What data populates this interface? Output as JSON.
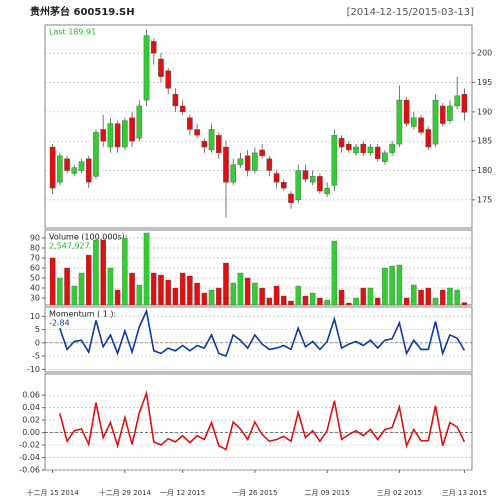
{
  "chart_data": [
    {
      "type": "candlestick",
      "title": "贵州茅台 600519.SH",
      "subtitle": "[2014-12-15/2015-03-13]",
      "annotation": "Last 189.91",
      "categories": [
        "十二月 15 2014",
        null,
        null,
        null,
        null,
        null,
        null,
        null,
        null,
        null,
        "十二月 29 2014",
        null,
        null,
        null,
        null,
        null,
        null,
        null,
        "一月 12 2015",
        null,
        null,
        null,
        null,
        null,
        null,
        null,
        null,
        null,
        "一月 26 2015",
        null,
        null,
        null,
        null,
        null,
        null,
        null,
        null,
        null,
        "二月 09 2015",
        null,
        null,
        null,
        null,
        null,
        null,
        null,
        null,
        null,
        "三月 02 2015",
        null,
        null,
        null,
        null,
        null,
        null,
        null,
        null,
        "三月 13 2015"
      ],
      "open": [
        184,
        178,
        182,
        179.5,
        180,
        182,
        179,
        187,
        184,
        188,
        184,
        189,
        185.5,
        192,
        202,
        199,
        197,
        193,
        191,
        189,
        187,
        185,
        183.5,
        186,
        184,
        178,
        181,
        182.5,
        180,
        183.5,
        182,
        179.5,
        178,
        176,
        175,
        180,
        178,
        179,
        176,
        177.5,
        185.5,
        184.5,
        183,
        184.5,
        183,
        184,
        181.5,
        183,
        184.5,
        192,
        187.5,
        189,
        187,
        184.5,
        191,
        188.5,
        191,
        193
      ],
      "high": [
        184.5,
        183,
        182.5,
        181,
        182,
        182.5,
        187,
        189.5,
        189,
        188.5,
        189,
        190,
        192,
        204,
        202.5,
        200,
        197.5,
        194,
        192,
        189.5,
        188,
        185.5,
        188,
        186.5,
        185,
        182,
        183,
        183.5,
        184,
        184.5,
        182.5,
        180,
        178.5,
        176.5,
        181,
        181,
        180,
        179.5,
        178,
        187,
        186,
        185,
        184.5,
        185,
        184.5,
        184.5,
        183.5,
        185,
        194.5,
        192.5,
        190,
        189.5,
        187.5,
        193,
        191.5,
        192,
        196,
        194
      ],
      "low": [
        176,
        177.5,
        179.5,
        179,
        179.5,
        177,
        178.5,
        184,
        183,
        183,
        183.5,
        184,
        185,
        191,
        198,
        195,
        193,
        190,
        189.5,
        186,
        185.5,
        183,
        183,
        182,
        172,
        177.5,
        180.5,
        179,
        179.5,
        182,
        179,
        177,
        176.5,
        173.5,
        174.5,
        178,
        177.5,
        176,
        175.5,
        176.5,
        183,
        183,
        182.5,
        182.5,
        182.5,
        181.5,
        181,
        182.5,
        184,
        187.5,
        187,
        186,
        183.5,
        184,
        187.5,
        188,
        190.5,
        188.5
      ],
      "close": [
        177,
        182.5,
        180,
        180.5,
        181.5,
        178,
        186.5,
        185,
        188,
        184,
        188.5,
        185,
        191,
        203,
        200,
        196,
        194,
        191,
        190,
        187,
        186,
        184,
        187,
        183,
        178,
        181,
        182,
        180,
        183,
        182.5,
        180,
        178,
        177,
        174.5,
        180,
        178.5,
        179,
        176.5,
        177,
        186,
        184,
        183.5,
        184,
        183,
        184,
        182,
        183,
        184.5,
        192,
        188,
        189,
        186.5,
        184,
        192,
        188,
        191,
        192.75,
        189.91
      ],
      "up_color": "#33cc33",
      "down_color": "#dd1111",
      "ylim": [
        170.2,
        204.8
      ],
      "yticks": [
        175,
        180,
        185,
        190,
        195,
        200
      ],
      "grid": true,
      "axis_side": "right"
    },
    {
      "type": "bar",
      "label": "Volume (100,000s):",
      "annotation": "2,547,927",
      "values": [
        70,
        50,
        60,
        42,
        55,
        73,
        88,
        88,
        60,
        38,
        90,
        55,
        43,
        95,
        55,
        53,
        48,
        40,
        55,
        52,
        45,
        35,
        38,
        40,
        65,
        45,
        55,
        50,
        45,
        40,
        30,
        42,
        32,
        27,
        42,
        32,
        35,
        30,
        28,
        87,
        38,
        25,
        30,
        40,
        40,
        30,
        60,
        62,
        63,
        30,
        43,
        38,
        40,
        30,
        38,
        40,
        38,
        25.47927
      ],
      "ylim": [
        23,
        98
      ],
      "yticks": [
        30,
        40,
        50,
        60,
        70,
        80,
        90
      ],
      "grid": true,
      "axis_side": "left"
    },
    {
      "type": "line",
      "label": "Momentum ( 1 ):",
      "annotation": "-2.84",
      "color": "#0a3aa8",
      "values": [
        null,
        5.5,
        -2.5,
        0.5,
        1,
        -3.5,
        8.5,
        -1.5,
        3,
        -4,
        4.5,
        -3.5,
        6,
        12,
        -3,
        -4,
        -2,
        -3,
        -1,
        -3,
        -1,
        -2,
        3,
        -4,
        -5,
        3,
        1,
        -2,
        3,
        -0.5,
        -2.5,
        -2,
        -1,
        -2.5,
        5.5,
        -1.5,
        0.5,
        -2.5,
        0.5,
        9,
        -2,
        -0.5,
        0.5,
        -1,
        1,
        -2,
        1,
        1.5,
        7.5,
        -4,
        1,
        -2.5,
        -2.5,
        8,
        -4,
        3,
        1.75,
        -2.84
      ],
      "ylim": [
        -11,
        13.5
      ],
      "yticks": [
        -10,
        -5,
        0,
        5,
        10
      ],
      "grid": true,
      "axis_side": "left"
    },
    {
      "type": "line",
      "color": "#dd1111",
      "values": [
        null,
        0.031,
        -0.014,
        0.003,
        0.006,
        -0.019,
        0.048,
        -0.008,
        0.016,
        -0.021,
        0.024,
        -0.019,
        0.032,
        0.063,
        -0.015,
        -0.02,
        -0.01,
        -0.015,
        -0.005,
        -0.016,
        -0.005,
        -0.011,
        0.016,
        -0.021,
        -0.027,
        0.017,
        0.006,
        -0.011,
        0.017,
        -0.003,
        -0.014,
        -0.011,
        -0.006,
        -0.014,
        0.032,
        -0.008,
        0.003,
        -0.014,
        0.003,
        0.051,
        -0.011,
        -0.003,
        0.003,
        -0.005,
        0.005,
        -0.011,
        0.005,
        0.008,
        0.041,
        -0.021,
        0.005,
        -0.013,
        -0.013,
        0.043,
        -0.021,
        0.016,
        0.009,
        -0.015
      ],
      "ylim": [
        -0.06,
        0.094
      ],
      "yticks": [
        -0.06,
        -0.04,
        -0.02,
        {
          "value": 0,
          "label": "0.00"
        },
        0.02,
        0.04,
        0.06
      ],
      "grid": true,
      "axis_side": "left"
    }
  ]
}
